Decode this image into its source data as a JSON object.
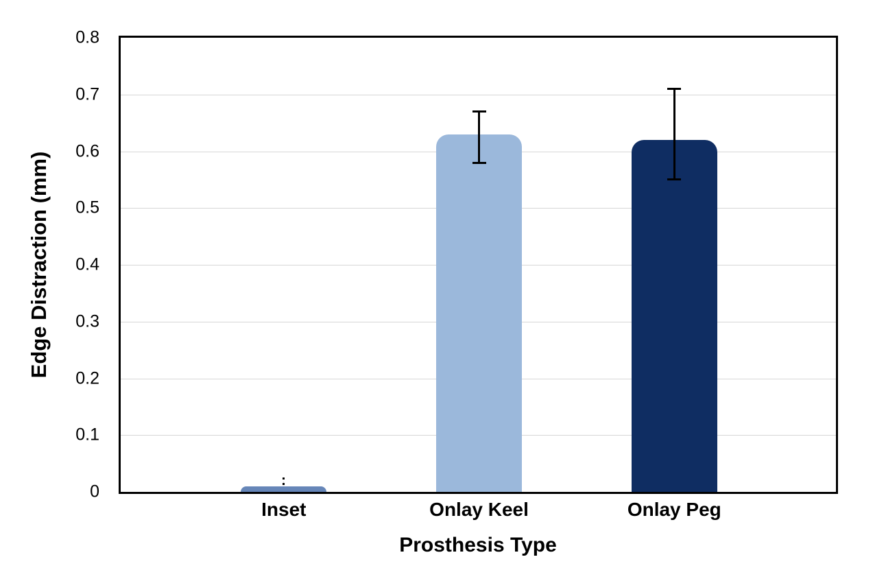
{
  "chart_data": {
    "type": "bar",
    "title": "",
    "xlabel": "Prosthesis Type",
    "ylabel": "Edge Distraction (mm)",
    "categories": [
      "Inset",
      "Onlay Keel",
      "Onlay Peg"
    ],
    "values": [
      0.01,
      0.63,
      0.62
    ],
    "error_low": [
      0.012,
      0.58,
      0.55
    ],
    "error_high": [
      0.025,
      0.67,
      0.71
    ],
    "error_styles": [
      "dotted",
      "solid",
      "solid"
    ],
    "bar_colors": [
      "#6686B8",
      "#9BB8DB",
      "#0F2D62"
    ],
    "ylim": [
      0,
      0.8
    ],
    "yticks": [
      "0",
      "0.1",
      "0.2",
      "0.3",
      "0.4",
      "0.5",
      "0.6",
      "0.7",
      "0.8"
    ],
    "ytick_values": [
      0,
      0.1,
      0.2,
      0.3,
      0.4,
      0.5,
      0.6,
      0.7,
      0.8
    ],
    "grid": "horizontal",
    "legend": "none",
    "grid_color": "#D6D6D6",
    "frame_color": "#000000",
    "error_color": "#000000",
    "background": "#FFFFFF"
  }
}
